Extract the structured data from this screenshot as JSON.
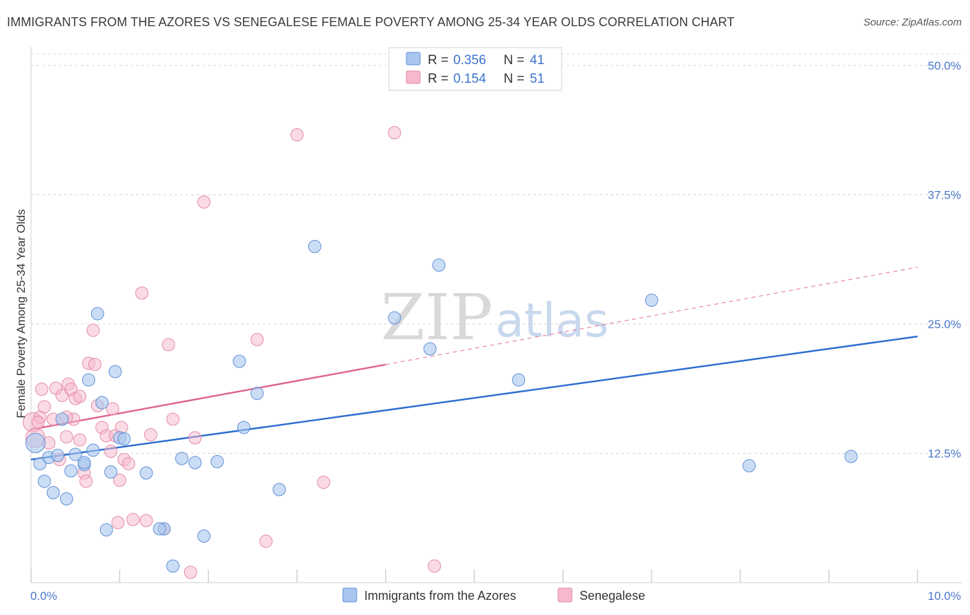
{
  "title": "IMMIGRANTS FROM THE AZORES VS SENEGALESE FEMALE POVERTY AMONG 25-34 YEAR OLDS CORRELATION CHART",
  "source": "Source: ZipAtlas.com",
  "watermark": {
    "zip": "ZIP",
    "atlas": "atlas"
  },
  "colors": {
    "blue_fill": "#a9c6ee",
    "blue_stroke": "#5f8fd6",
    "blue_line": "#2f6fd0",
    "pink_fill": "#f6b8cb",
    "pink_stroke": "#e38aa8",
    "pink_line": "#e0668f",
    "grid": "#d8d8d8",
    "tick_text": "#4a78c9"
  },
  "legend": {
    "r_label": "R =",
    "n_label": "N =",
    "series": [
      {
        "name": "Immigrants from the Azores",
        "r": "0.356",
        "n": "41"
      },
      {
        "name": "Senegalese",
        "r": "0.154",
        "n": "51"
      }
    ]
  },
  "chart_data": {
    "type": "scatter",
    "title": "IMMIGRANTS FROM THE AZORES VS SENEGALESE FEMALE POVERTY AMONG 25-34 YEAR OLDS CORRELATION CHART",
    "xlabel": "",
    "ylabel": "Female Poverty Among 25-34 Year Olds",
    "xlim": [
      0,
      10
    ],
    "ylim": [
      0,
      50
    ],
    "x_tick_labels": [
      "0.0%",
      "10.0%"
    ],
    "y_ticks": [
      12.5,
      25.0,
      37.5,
      50.0
    ],
    "y_tick_labels": [
      "12.5%",
      "25.0%",
      "37.5%",
      "50.0%"
    ],
    "grid": true,
    "series": [
      {
        "name": "Immigrants from the Azores",
        "trend": {
          "x0": 0,
          "y0": 11.9,
          "x1": 10,
          "y1": 23.8,
          "dashed_from_x": null
        },
        "points": [
          [
            0.05,
            13.5
          ],
          [
            0.1,
            11.5
          ],
          [
            0.15,
            9.8
          ],
          [
            0.2,
            12.1
          ],
          [
            0.25,
            8.7
          ],
          [
            0.3,
            12.3
          ],
          [
            0.35,
            15.8
          ],
          [
            0.4,
            8.1
          ],
          [
            0.45,
            10.8
          ],
          [
            0.5,
            12.4
          ],
          [
            0.6,
            11.4
          ],
          [
            0.65,
            19.6
          ],
          [
            0.7,
            12.8
          ],
          [
            0.75,
            26.0
          ],
          [
            0.8,
            17.4
          ],
          [
            0.85,
            5.1
          ],
          [
            0.9,
            10.7
          ],
          [
            0.95,
            20.4
          ],
          [
            1.0,
            14.0
          ],
          [
            1.05,
            13.9
          ],
          [
            1.3,
            10.6
          ],
          [
            1.5,
            5.2
          ],
          [
            1.6,
            1.6
          ],
          [
            1.7,
            12.0
          ],
          [
            1.85,
            11.6
          ],
          [
            1.95,
            4.5
          ],
          [
            2.1,
            11.7
          ],
          [
            2.35,
            21.4
          ],
          [
            2.4,
            15.0
          ],
          [
            2.55,
            18.3
          ],
          [
            2.8,
            9.0
          ],
          [
            3.2,
            32.5
          ],
          [
            4.1,
            25.6
          ],
          [
            4.5,
            22.6
          ],
          [
            4.6,
            30.7
          ],
          [
            5.5,
            19.6
          ],
          [
            7.0,
            27.3
          ],
          [
            8.1,
            11.3
          ],
          [
            9.25,
            12.2
          ],
          [
            1.45,
            5.2
          ],
          [
            0.6,
            11.6
          ]
        ]
      },
      {
        "name": "Senegalese",
        "trend": {
          "x0": 0,
          "y0": 14.8,
          "x1": 10,
          "y1": 30.5,
          "dashed_from_x": 4.0
        },
        "points": [
          [
            0.02,
            15.5
          ],
          [
            0.05,
            14.0
          ],
          [
            0.1,
            16.0
          ],
          [
            0.12,
            18.7
          ],
          [
            0.15,
            17.0
          ],
          [
            0.2,
            13.5
          ],
          [
            0.25,
            15.8
          ],
          [
            0.28,
            18.8
          ],
          [
            0.32,
            11.9
          ],
          [
            0.35,
            18.1
          ],
          [
            0.4,
            14.1
          ],
          [
            0.42,
            19.2
          ],
          [
            0.45,
            18.7
          ],
          [
            0.48,
            15.8
          ],
          [
            0.5,
            17.8
          ],
          [
            0.55,
            13.8
          ],
          [
            0.6,
            10.6
          ],
          [
            0.62,
            9.8
          ],
          [
            0.55,
            18.0
          ],
          [
            0.65,
            21.2
          ],
          [
            0.7,
            24.4
          ],
          [
            0.72,
            21.1
          ],
          [
            0.75,
            17.1
          ],
          [
            0.8,
            15.0
          ],
          [
            0.85,
            14.2
          ],
          [
            0.9,
            12.7
          ],
          [
            0.92,
            16.8
          ],
          [
            0.95,
            14.2
          ],
          [
            0.98,
            5.8
          ],
          [
            1.0,
            9.9
          ],
          [
            1.05,
            11.9
          ],
          [
            1.1,
            11.5
          ],
          [
            1.15,
            6.1
          ],
          [
            1.25,
            28.0
          ],
          [
            1.3,
            6.0
          ],
          [
            1.35,
            14.3
          ],
          [
            1.5,
            5.2
          ],
          [
            1.55,
            23.0
          ],
          [
            1.6,
            15.8
          ],
          [
            1.8,
            1.0
          ],
          [
            1.85,
            14.0
          ],
          [
            1.95,
            36.8
          ],
          [
            2.55,
            23.5
          ],
          [
            2.65,
            4.0
          ],
          [
            3.0,
            43.3
          ],
          [
            3.3,
            9.7
          ],
          [
            4.1,
            43.5
          ],
          [
            4.55,
            1.6
          ],
          [
            0.08,
            15.5
          ],
          [
            1.02,
            15.0
          ],
          [
            0.4,
            16.0
          ]
        ]
      }
    ]
  },
  "axis_label": "Female Poverty Among 25-34 Year Olds"
}
